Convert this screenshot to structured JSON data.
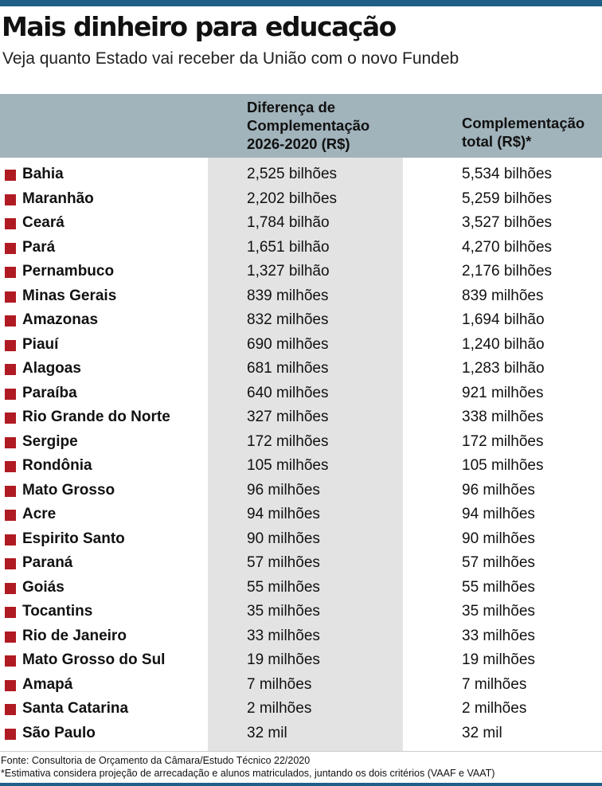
{
  "title": "Mais dinheiro para educação",
  "subtitle": "Veja quanto Estado vai receber da União com o novo Fundeb",
  "source": "Fonte: Consultoria de Orçamento da Câmara/Estudo Técnico 22/2020",
  "note": "*Estimativa considera projeção de arrecadação e alunos matriculados, juntando os dois critérios (VAAF e VAAT)",
  "colors": {
    "accent_bar": "#1f5f87",
    "header_bg": "#a1b3bb",
    "column_shade": "#e3e3e3",
    "bullet": "#b01a22"
  },
  "chart_data": {
    "type": "table",
    "title": "Mais dinheiro para educação",
    "subtitle": "Veja quanto Estado vai receber da União com o novo Fundeb",
    "columns": [
      "",
      "Diferença de\nComplementação\n2026-2020 (R$)",
      "Complementação\ntotal (R$)*"
    ],
    "rows": [
      [
        "Bahia",
        "2,525 bilhões",
        "5,534 bilhões"
      ],
      [
        "Maranhão",
        "2,202 bilhões",
        "5,259 bilhões"
      ],
      [
        "Ceará",
        "1,784 bilhão",
        "3,527 bilhões"
      ],
      [
        "Pará",
        "1,651 bilhão",
        "4,270 bilhões"
      ],
      [
        "Pernambuco",
        "1,327 bilhão",
        "2,176 bilhões"
      ],
      [
        "Minas Gerais",
        "839 milhões",
        "839 milhões"
      ],
      [
        "Amazonas",
        "832 milhões",
        "1,694 bilhão"
      ],
      [
        "Piauí",
        "690 milhões",
        "1,240 bilhão"
      ],
      [
        "Alagoas",
        "681 milhões",
        "1,283 bilhão"
      ],
      [
        "Paraíba",
        "640 milhões",
        "921 milhões"
      ],
      [
        "Rio Grande do Norte",
        "327 milhões",
        "338 milhões"
      ],
      [
        "Sergipe",
        "172 milhões",
        "172 milhões"
      ],
      [
        "Rondônia",
        "105 milhões",
        "105 milhões"
      ],
      [
        "Mato Grosso",
        "96 milhões",
        "96 milhões"
      ],
      [
        "Acre",
        "94 milhões",
        "94 milhões"
      ],
      [
        "Espirito Santo",
        "90 milhões",
        "90 milhões"
      ],
      [
        "Paraná",
        "57 milhões",
        "57 milhões"
      ],
      [
        "Goiás",
        "55 milhões",
        "55 milhões"
      ],
      [
        "Tocantins",
        "35 milhões",
        "35 milhões"
      ],
      [
        "Rio de Janeiro",
        "33 milhões",
        "33 milhões"
      ],
      [
        "Mato Grosso do Sul",
        "19 milhões",
        "19 milhões"
      ],
      [
        "Amapá",
        "7 milhões",
        "7 milhões"
      ],
      [
        "Santa Catarina",
        "2 milhões",
        "2 milhões"
      ],
      [
        "São Paulo",
        "32 mil",
        "32 mil"
      ]
    ]
  }
}
